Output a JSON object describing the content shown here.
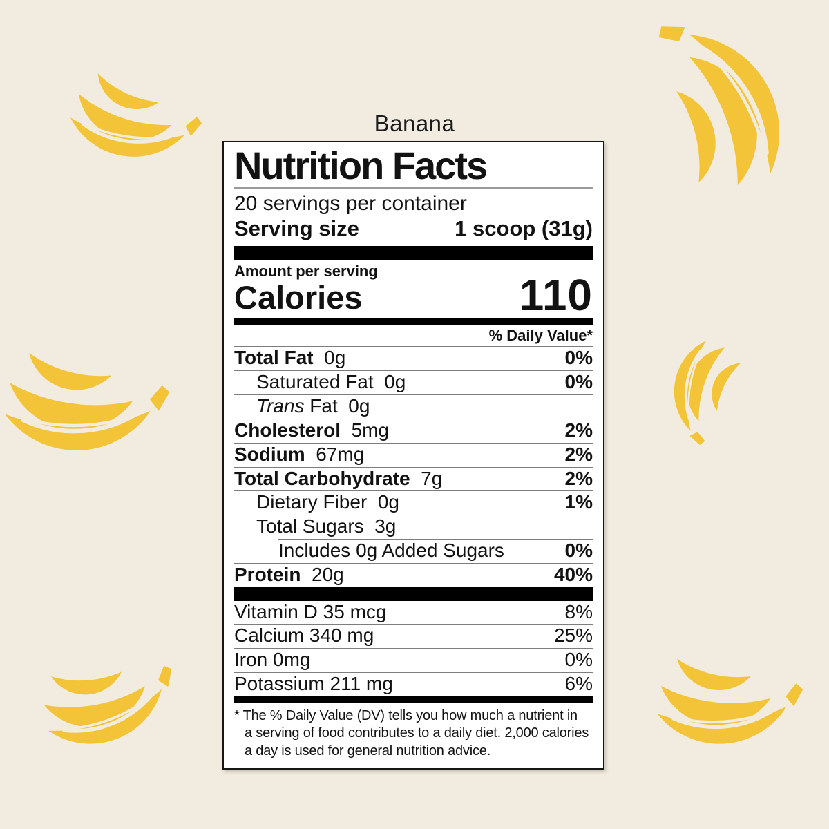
{
  "page": {
    "background_color": "#F1ECDF",
    "banana_color": "#F3C338",
    "flavor_title": "Banana"
  },
  "label": {
    "title": "Nutrition Facts",
    "servings_per_container": "20 servings per container",
    "serving_size_label": "Serving size",
    "serving_size_value": "1 scoop (31g)",
    "amount_per_serving": "Amount per serving",
    "calories_label": "Calories",
    "calories_value": "110",
    "daily_value_header": "% Daily Value*",
    "nutrients": [
      {
        "name": "Total Fat",
        "amount": "0g",
        "dv": "0%",
        "bold": true,
        "indent": 0
      },
      {
        "name": "Saturated Fat",
        "amount": "0g",
        "dv": "0%",
        "bold": false,
        "indent": 1
      },
      {
        "name_italic": "Trans",
        "name": "Fat",
        "amount": "0g",
        "dv": "",
        "bold": false,
        "indent": 1
      },
      {
        "name": "Cholesterol",
        "amount": "5mg",
        "dv": "2%",
        "bold": true,
        "indent": 0
      },
      {
        "name": "Sodium",
        "amount": "67mg",
        "dv": "2%",
        "bold": true,
        "indent": 0
      },
      {
        "name": "Total Carbohydrate",
        "amount": "7g",
        "dv": "2%",
        "bold": true,
        "indent": 0
      },
      {
        "name": "Dietary Fiber",
        "amount": "0g",
        "dv": "1%",
        "bold": false,
        "indent": 1
      },
      {
        "name": "Total Sugars",
        "amount": "3g",
        "dv": "",
        "bold": false,
        "indent": 1
      },
      {
        "name": "Includes 0g Added Sugars",
        "amount": "",
        "dv": "0%",
        "bold": false,
        "indent": 2,
        "sep_indent": true
      },
      {
        "name": "Protein",
        "amount": "20g",
        "dv": "40%",
        "bold": true,
        "indent": 0
      }
    ],
    "micronutrients": [
      {
        "name": "Vitamin D 35 mcg",
        "dv": "8%"
      },
      {
        "name": "Calcium 340 mg",
        "dv": "25%"
      },
      {
        "name": "Iron 0mg",
        "dv": "0%"
      },
      {
        "name": "Potassium 211 mg",
        "dv": "6%"
      }
    ],
    "footnote_lines": [
      "* The % Daily Value (DV) tells you how much a nutrient in",
      "a serving of food contributes to a daily diet. 2,000 calories",
      "a day is used for general nutrition advice."
    ]
  }
}
